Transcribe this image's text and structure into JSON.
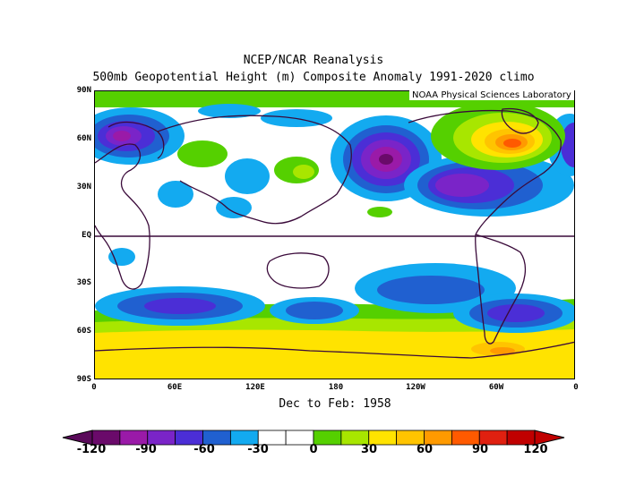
{
  "title_line1": "NCEP/NCAR Reanalysis",
  "title_line2": "500mb Geopotential Height (m) Composite Anomaly 1991-2020 climo",
  "credit": "NOAA Physical Sciences Laboratory",
  "season_label": "Dec to Feb: 1958",
  "lat_ticks": [
    "90N",
    "60N",
    "30N",
    "EQ",
    "30S",
    "60S",
    "90S"
  ],
  "lon_ticks": [
    "0",
    "60E",
    "120E",
    "180",
    "120W",
    "60W",
    "0"
  ],
  "colorbar": {
    "labels": [
      "-120",
      "-90",
      "-60",
      "-30",
      "0",
      "30",
      "60",
      "90",
      "120"
    ],
    "colors": [
      "#6a0a6a",
      "#9a1aa8",
      "#7a24c8",
      "#4b2ed6",
      "#2060d0",
      "#13aaf0",
      "#ffffff",
      "#ffffff",
      "#55d000",
      "#a8e600",
      "#ffe300",
      "#ffc400",
      "#ff9a00",
      "#ff5a00",
      "#e02010",
      "#c00000"
    ],
    "end_low": "#5a0a5a",
    "end_high": "#c00000"
  }
}
